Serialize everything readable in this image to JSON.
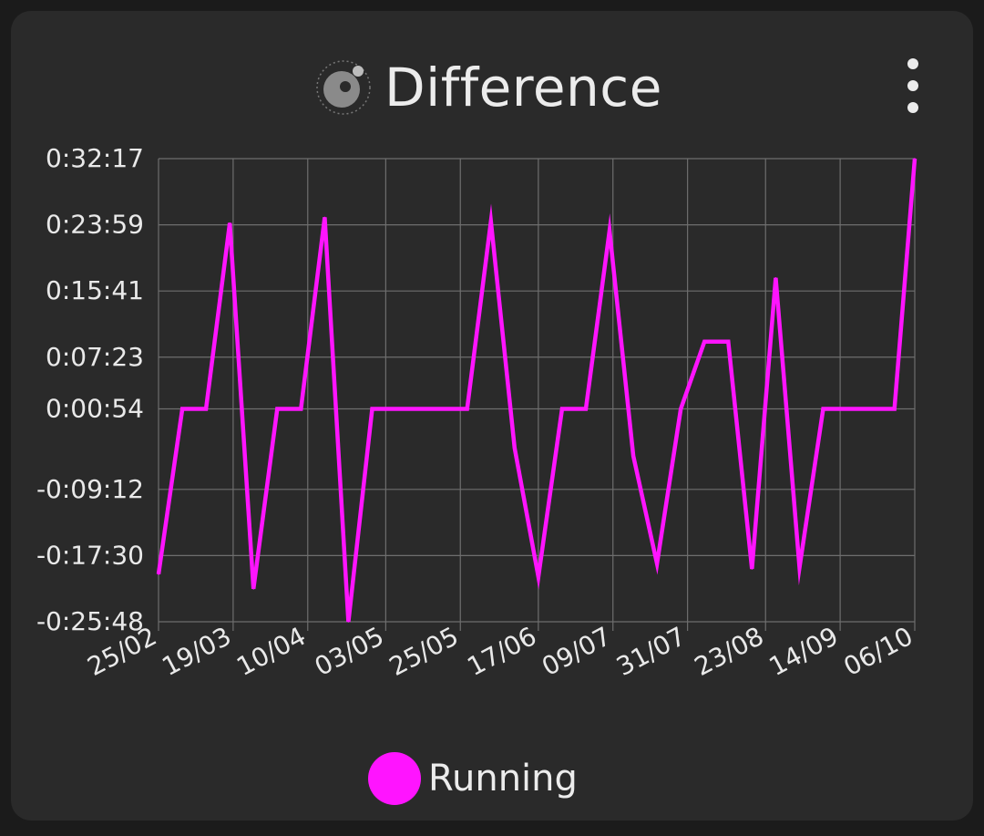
{
  "header": {
    "title": "Difference",
    "icon": "app-logo-icon",
    "menu_icon": "more-vertical-icon"
  },
  "colors": {
    "card_background": "#2a2a2a",
    "page_background": "#1b1b1b",
    "series": "#ff14ff",
    "grid": "#6e6e6e",
    "text": "#ececec"
  },
  "chart_data": {
    "type": "line",
    "title": "Difference",
    "xlabel": "",
    "ylabel": "",
    "grid": true,
    "legend_placement": "bottom-center",
    "y_ticks": [
      "0:32:17",
      "0:23:59",
      "0:15:41",
      "0:07:23",
      "0:00:54",
      "-0:09:12",
      "-0:17:30",
      "-0:25:48"
    ],
    "y_tick_values_seconds": [
      1937,
      1439,
      941,
      443,
      54,
      -552,
      -1050,
      -1548
    ],
    "ylim_seconds": [
      -1548,
      1937
    ],
    "x_ticks": [
      "25/02",
      "19/03",
      "10/04",
      "03/05",
      "25/05",
      "17/06",
      "09/07",
      "31/07",
      "23/08",
      "14/09",
      "06/10"
    ],
    "xlim": [
      "25/02",
      "06/10"
    ],
    "series": [
      {
        "name": "Running",
        "points": [
          {
            "x": "25/02",
            "y": -1190
          },
          {
            "x": "04/03",
            "y": 54
          },
          {
            "x": "11/03",
            "y": 54
          },
          {
            "x": "18/03",
            "y": 1452
          },
          {
            "x": "25/03",
            "y": -1300
          },
          {
            "x": "01/04",
            "y": 54
          },
          {
            "x": "08/04",
            "y": 54
          },
          {
            "x": "15/04",
            "y": 1495
          },
          {
            "x": "22/04",
            "y": -1548
          },
          {
            "x": "29/04",
            "y": 54
          },
          {
            "x": "06/05",
            "y": 54
          },
          {
            "x": "13/05",
            "y": 54
          },
          {
            "x": "20/05",
            "y": 54
          },
          {
            "x": "27/05",
            "y": 54
          },
          {
            "x": "03/06",
            "y": 1465
          },
          {
            "x": "10/06",
            "y": -240
          },
          {
            "x": "17/06",
            "y": -1210
          },
          {
            "x": "24/06",
            "y": 54
          },
          {
            "x": "01/07",
            "y": 54
          },
          {
            "x": "08/07",
            "y": 1395
          },
          {
            "x": "15/07",
            "y": -300
          },
          {
            "x": "22/07",
            "y": -1110
          },
          {
            "x": "29/07",
            "y": 54
          },
          {
            "x": "05/08",
            "y": 560
          },
          {
            "x": "12/08",
            "y": 560
          },
          {
            "x": "19/08",
            "y": -1150
          },
          {
            "x": "26/08",
            "y": 1040
          },
          {
            "x": "02/09",
            "y": -1140
          },
          {
            "x": "09/09",
            "y": 54
          },
          {
            "x": "16/09",
            "y": 54
          },
          {
            "x": "23/09",
            "y": 54
          },
          {
            "x": "30/09",
            "y": 54
          },
          {
            "x": "06/10",
            "y": 1937
          }
        ]
      }
    ]
  }
}
